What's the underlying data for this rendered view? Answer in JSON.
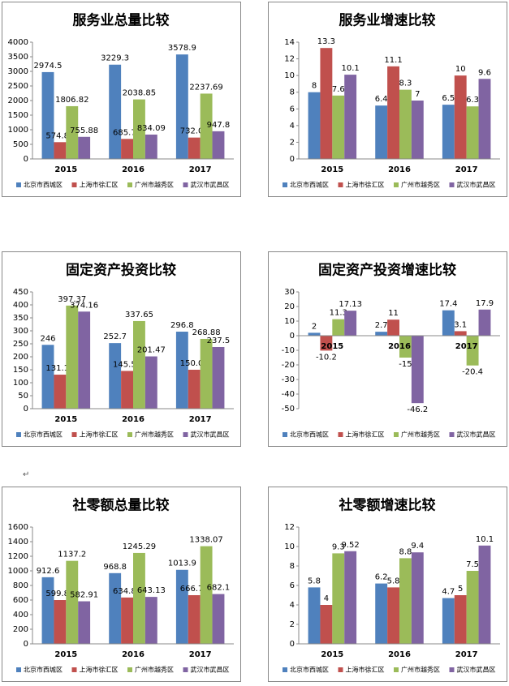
{
  "chart_data": [
    {
      "type": "bar",
      "title": "服务业总量比较",
      "categories": [
        "2015",
        "2016",
        "2017"
      ],
      "series": [
        {
          "name": "北京市西城区",
          "color": "#4f81bd",
          "values": [
            2974.5,
            3229.3,
            3578.9
          ]
        },
        {
          "name": "上海市徐汇区",
          "color": "#c0504d",
          "values": [
            574.89,
            685.75,
            732.02
          ]
        },
        {
          "name": "广州市越秀区",
          "color": "#9bbb59",
          "values": [
            1806.82,
            2038.85,
            2237.69
          ]
        },
        {
          "name": "武汉市武昌区",
          "color": "#8064a2",
          "values": [
            755.88,
            834.09,
            947.8
          ]
        }
      ],
      "ylim": [
        0,
        4000
      ],
      "yticks": [
        0,
        500,
        1000,
        1500,
        2000,
        2500,
        3000,
        3500,
        4000
      ],
      "grid": false,
      "legend": "bottom"
    },
    {
      "type": "bar",
      "title": "服务业增速比较",
      "categories": [
        "2015",
        "2016",
        "2017"
      ],
      "series": [
        {
          "name": "北京市西城区",
          "color": "#4f81bd",
          "values": [
            8,
            6.4,
            6.5
          ]
        },
        {
          "name": "上海市徐汇区",
          "color": "#c0504d",
          "values": [
            13.3,
            11.1,
            10
          ]
        },
        {
          "name": "广州市越秀区",
          "color": "#9bbb59",
          "values": [
            7.6,
            8.3,
            6.3
          ]
        },
        {
          "name": "武汉市武昌区",
          "color": "#8064a2",
          "values": [
            10.1,
            7,
            9.6
          ]
        }
      ],
      "ylim": [
        0,
        14
      ],
      "yticks": [
        0,
        2,
        4,
        6,
        8,
        10,
        12,
        14
      ],
      "grid": false,
      "legend": "bottom"
    },
    {
      "type": "bar",
      "title": "固定资产投资比较",
      "categories": [
        "2015",
        "2016",
        "2017"
      ],
      "series": [
        {
          "name": "北京市西城区",
          "color": "#4f81bd",
          "values": [
            246,
            252.7,
            296.8
          ]
        },
        {
          "name": "上海市徐汇区",
          "color": "#c0504d",
          "values": [
            131.11,
            145.52,
            150.05
          ]
        },
        {
          "name": "广州市越秀区",
          "color": "#9bbb59",
          "values": [
            397.37,
            337.65,
            268.88
          ]
        },
        {
          "name": "武汉市武昌区",
          "color": "#8064a2",
          "values": [
            374.16,
            201.47,
            237.5
          ]
        }
      ],
      "ylim": [
        0,
        450
      ],
      "yticks": [
        0,
        50,
        100,
        150,
        200,
        250,
        300,
        350,
        400,
        450
      ],
      "grid": false,
      "legend": "bottom"
    },
    {
      "type": "bar",
      "title": "固定资产投资增速比较",
      "categories": [
        "2015",
        "2016",
        "2017"
      ],
      "series": [
        {
          "name": "北京市西城区",
          "color": "#4f81bd",
          "values": [
            2,
            2.7,
            17.4
          ]
        },
        {
          "name": "上海市徐汇区",
          "color": "#c0504d",
          "values": [
            -10.2,
            11,
            3.1
          ]
        },
        {
          "name": "广州市越秀区",
          "color": "#9bbb59",
          "values": [
            11.3,
            -15,
            -20.4
          ]
        },
        {
          "name": "武汉市武昌区",
          "color": "#8064a2",
          "values": [
            17.13,
            -46.2,
            17.9
          ]
        }
      ],
      "ylim": [
        -50,
        30
      ],
      "yticks": [
        -50,
        -40,
        -30,
        -20,
        -10,
        0,
        10,
        20,
        30
      ],
      "grid": false,
      "legend": "bottom"
    },
    {
      "type": "bar",
      "title": "社零额总量比较",
      "categories": [
        "2015",
        "2016",
        "2017"
      ],
      "series": [
        {
          "name": "北京市西城区",
          "color": "#4f81bd",
          "values": [
            912.6,
            968.8,
            1013.9
          ]
        },
        {
          "name": "上海市徐汇区",
          "color": "#c0504d",
          "values": [
            599.85,
            634.86,
            666.74
          ]
        },
        {
          "name": "广州市越秀区",
          "color": "#9bbb59",
          "values": [
            1137.2,
            1245.29,
            1338.07
          ]
        },
        {
          "name": "武汉市武昌区",
          "color": "#8064a2",
          "values": [
            582.91,
            643.13,
            682.1
          ]
        }
      ],
      "ylim": [
        0,
        1600
      ],
      "yticks": [
        0,
        200,
        400,
        600,
        800,
        1000,
        1200,
        1400,
        1600
      ],
      "grid": false,
      "legend": "bottom"
    },
    {
      "type": "bar",
      "title": "社零额增速比较",
      "categories": [
        "2015",
        "2016",
        "2017"
      ],
      "series": [
        {
          "name": "北京市西城区",
          "color": "#4f81bd",
          "values": [
            5.8,
            6.2,
            4.7
          ]
        },
        {
          "name": "上海市徐汇区",
          "color": "#c0504d",
          "values": [
            4,
            5.8,
            5
          ]
        },
        {
          "name": "广州市越秀区",
          "color": "#9bbb59",
          "values": [
            9.3,
            8.8,
            7.5
          ]
        },
        {
          "name": "武汉市武昌区",
          "color": "#8064a2",
          "values": [
            9.52,
            9.4,
            10.1
          ]
        }
      ],
      "ylim": [
        0,
        12
      ],
      "yticks": [
        0,
        2,
        4,
        6,
        8,
        10,
        12
      ],
      "grid": false,
      "legend": "bottom"
    }
  ],
  "paragraph_mark": "↵"
}
